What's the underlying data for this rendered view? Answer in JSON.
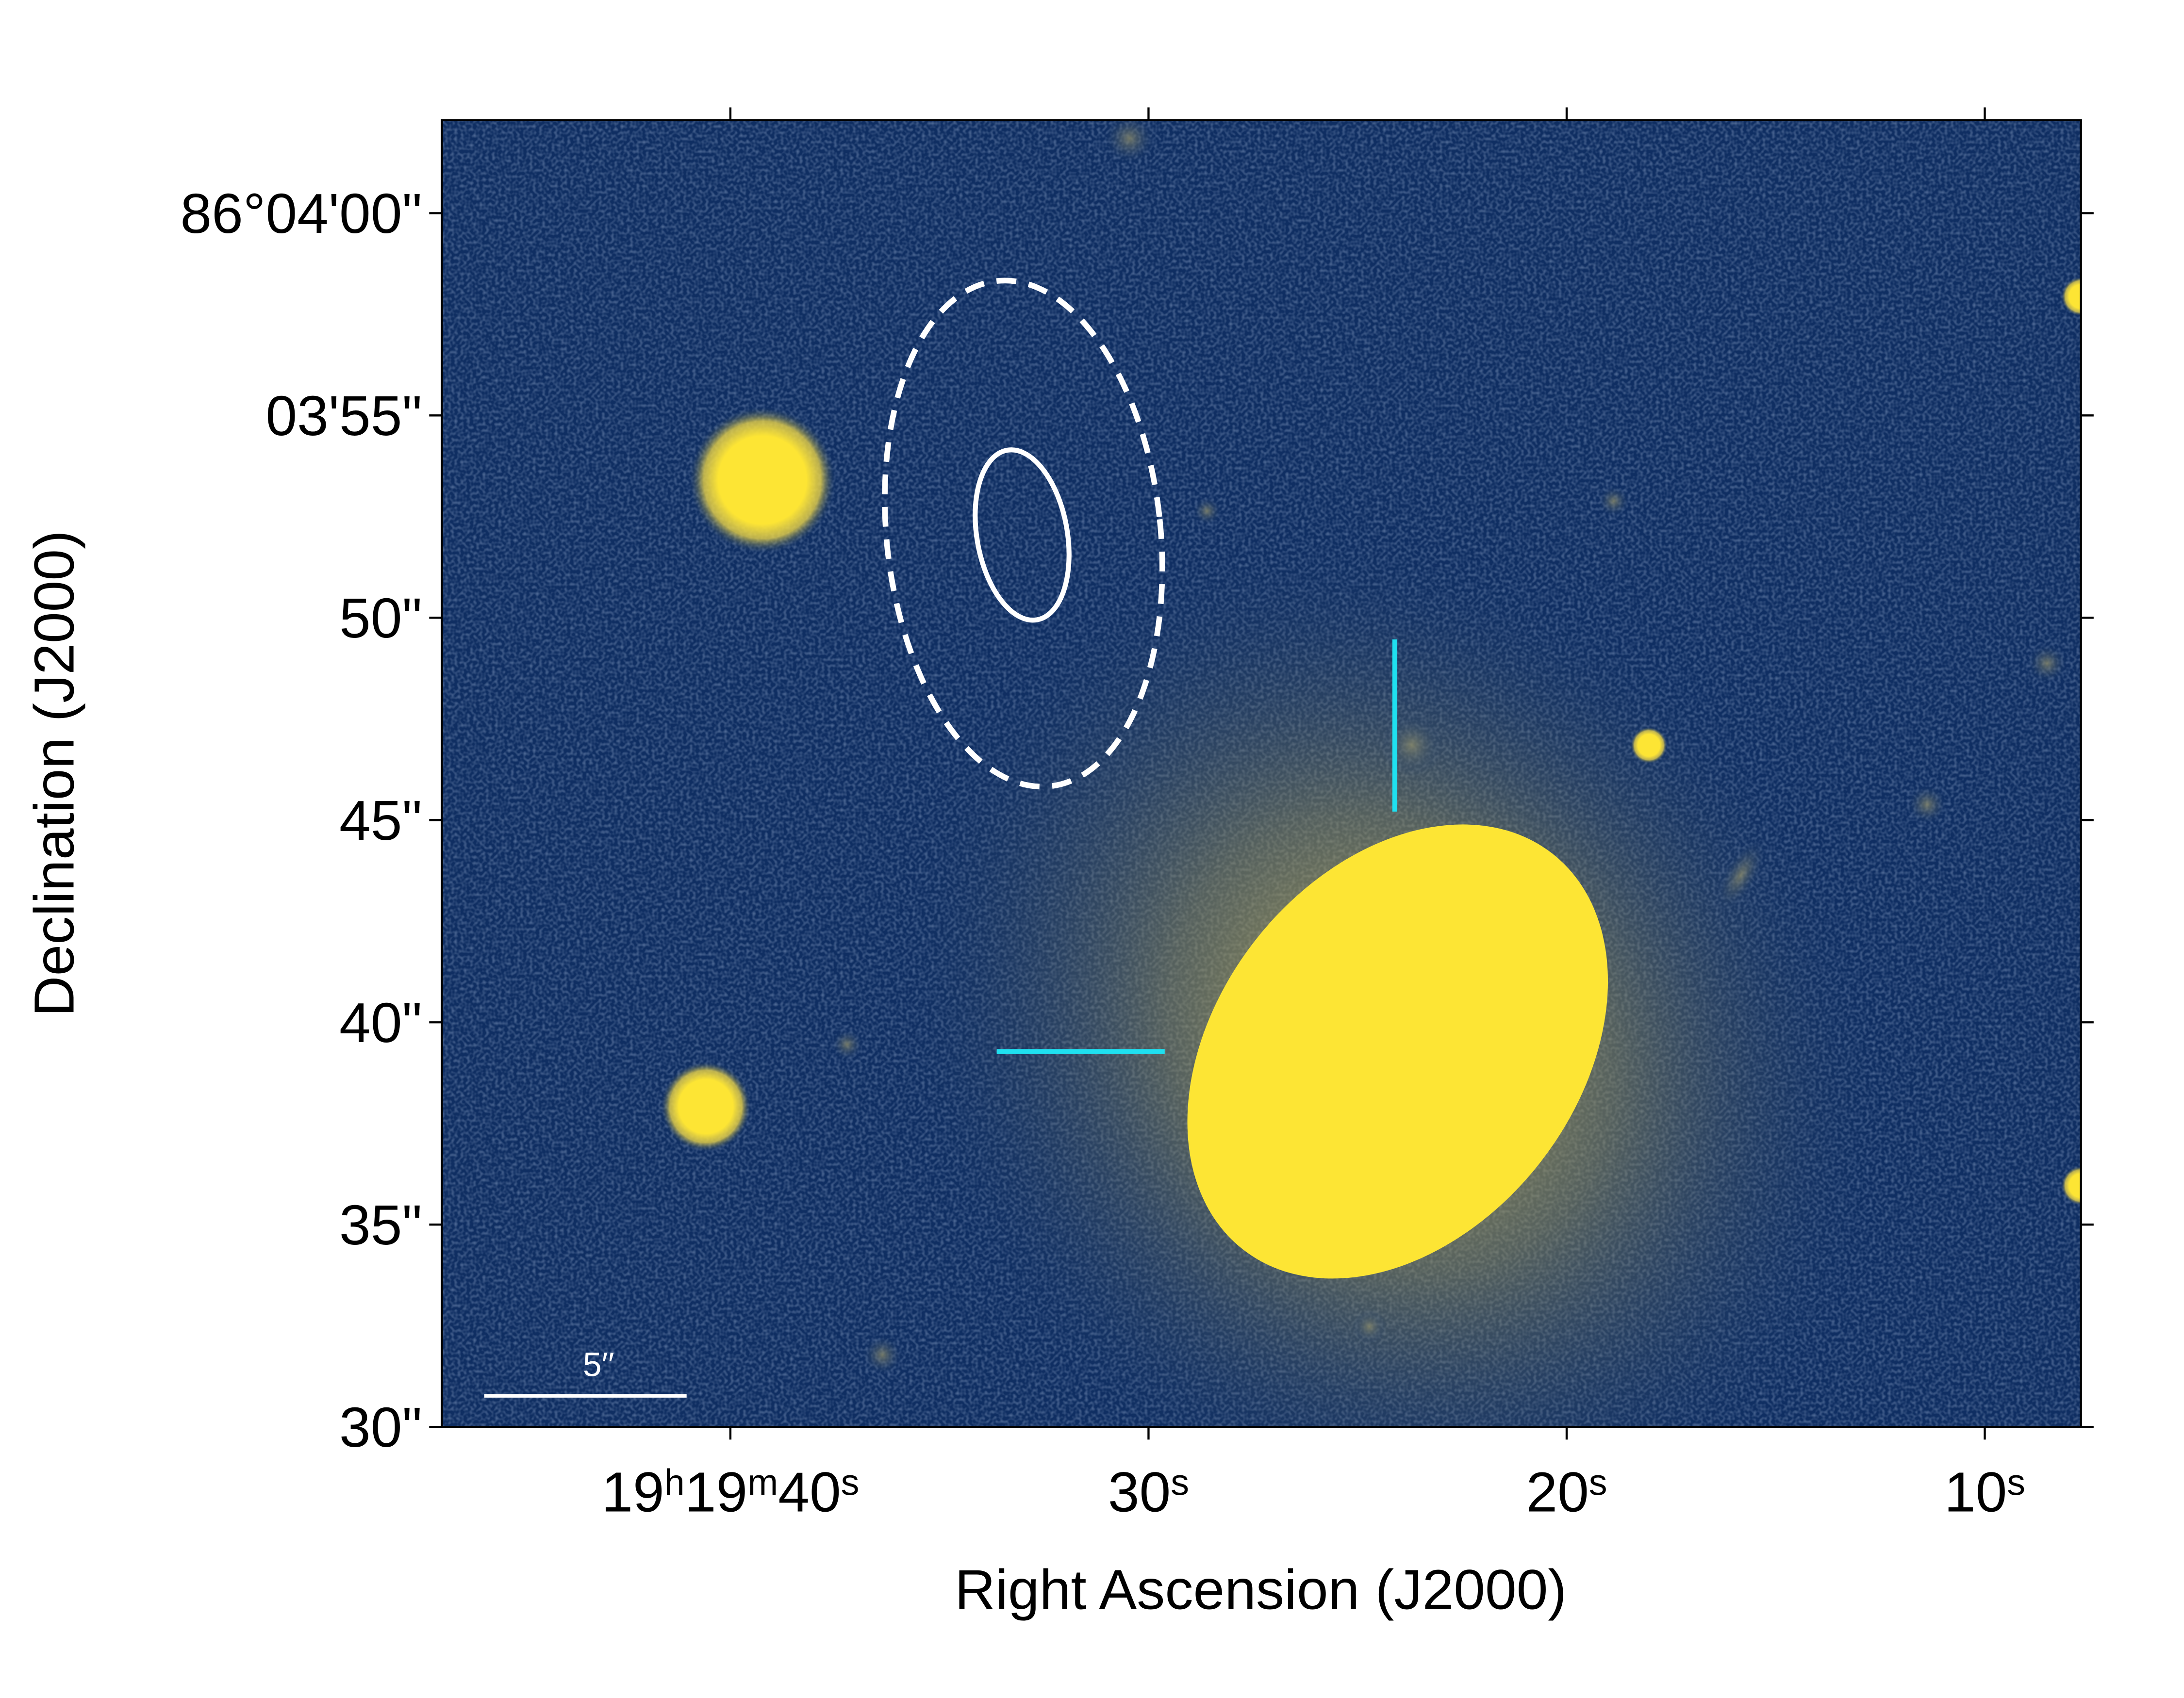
{
  "chart_data": {
    "type": "image",
    "xlabel": "Right Ascension (J2000)",
    "ylabel": "Declination (J2000)",
    "xlim": [
      46.9,
      7.7
    ],
    "ylim": [
      30,
      62.3
    ],
    "xticks": [
      {
        "value": 40,
        "label": "19h19m40s"
      },
      {
        "value": 30,
        "label": "30s"
      },
      {
        "value": 20,
        "label": "20s"
      },
      {
        "value": 10,
        "label": "10s"
      }
    ],
    "yticks": [
      {
        "value": 60,
        "label": "86°04'00\""
      },
      {
        "value": 55,
        "label": "03'55\""
      },
      {
        "value": 50,
        "label": "50\""
      },
      {
        "value": 45,
        "label": "45\""
      },
      {
        "value": 40,
        "label": "40\""
      },
      {
        "value": 35,
        "label": "35\""
      },
      {
        "value": 30,
        "label": "30\""
      }
    ],
    "scale_bar": {
      "label": "5′′",
      "length": 5
    },
    "grid": false
  }
}
